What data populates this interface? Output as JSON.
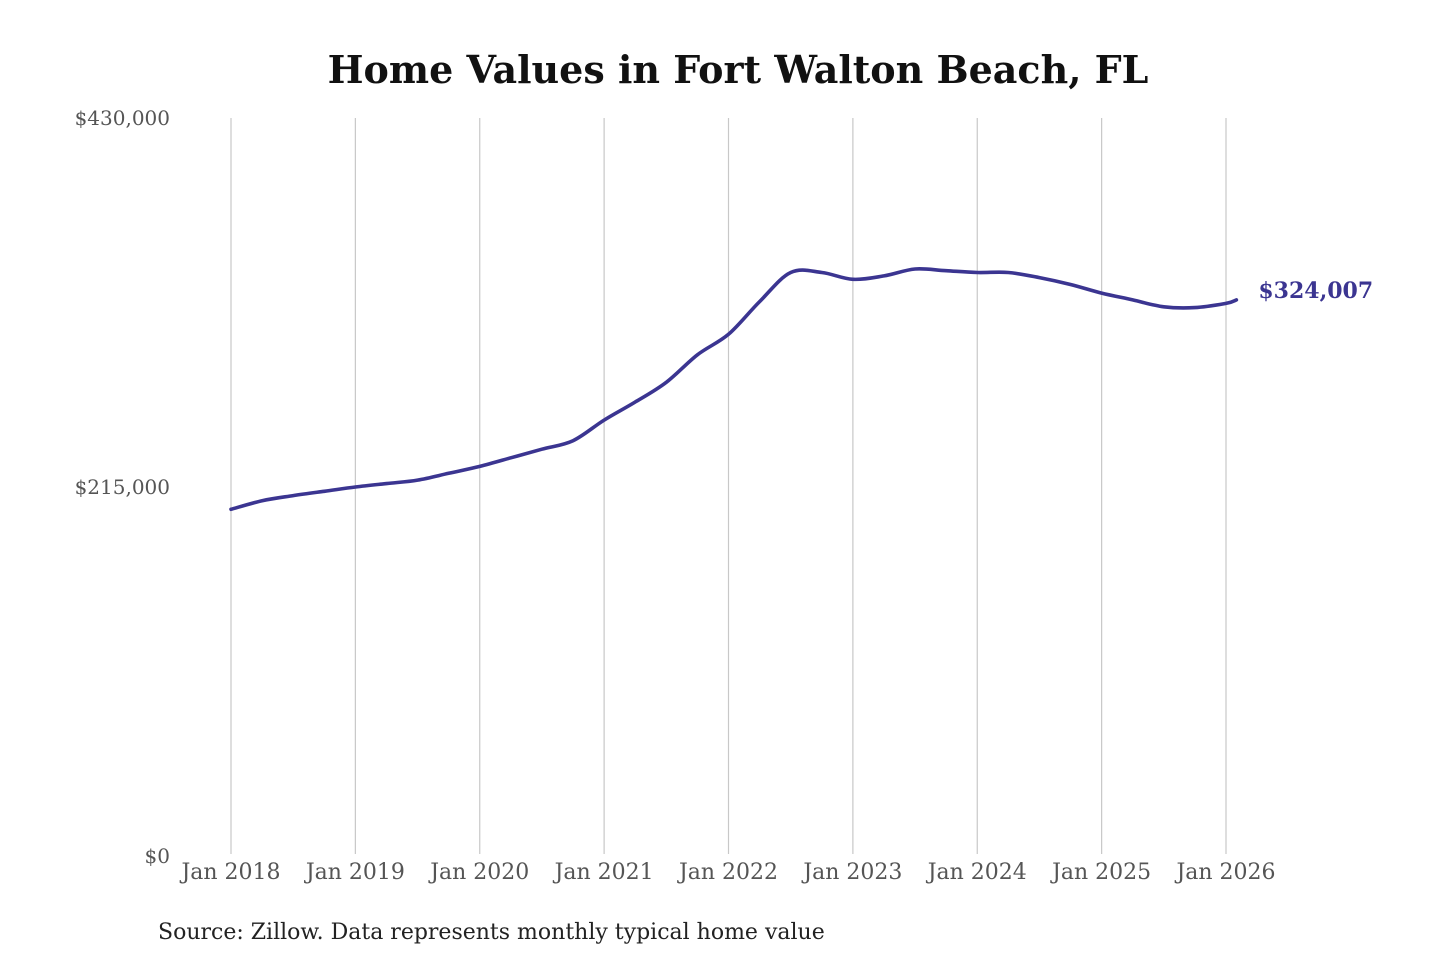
{
  "chart_data": {
    "type": "line",
    "title": "Home Values in Fort Walton Beach, FL",
    "source": "Source: Zillow. Data represents monthly typical home value",
    "y_ticks": [
      {
        "value": 0,
        "label": "$0"
      },
      {
        "value": 215000,
        "label": "$215,000"
      },
      {
        "value": 430000,
        "label": "$430,000"
      }
    ],
    "ylim": [
      0,
      430000
    ],
    "x_ticks": [
      "Jan 2018",
      "Jan 2019",
      "Jan 2020",
      "Jan 2021",
      "Jan 2022",
      "Jan 2023",
      "Jan 2024",
      "Jan 2025",
      "Jan 2026"
    ],
    "xlim": [
      "2018-01",
      "2026-01"
    ],
    "grid": "vertical",
    "line_color": "#3b3591",
    "series": [
      {
        "end_label": "$324,007",
        "points": [
          [
            "2018-01",
            202000
          ],
          [
            "2018-04",
            207000
          ],
          [
            "2018-07",
            210000
          ],
          [
            "2018-10",
            212500
          ],
          [
            "2019-01",
            215000
          ],
          [
            "2019-04",
            217000
          ],
          [
            "2019-07",
            219000
          ],
          [
            "2019-10",
            223000
          ],
          [
            "2020-01",
            227000
          ],
          [
            "2020-04",
            232000
          ],
          [
            "2020-07",
            237000
          ],
          [
            "2020-10",
            242000
          ],
          [
            "2021-01",
            254000
          ],
          [
            "2021-04",
            264500
          ],
          [
            "2021-07",
            276000
          ],
          [
            "2021-10",
            292000
          ],
          [
            "2022-01",
            304000
          ],
          [
            "2022-04",
            323000
          ],
          [
            "2022-07",
            340000
          ],
          [
            "2022-10",
            340000
          ],
          [
            "2023-01",
            336000
          ],
          [
            "2023-04",
            338000
          ],
          [
            "2023-07",
            342000
          ],
          [
            "2023-10",
            341000
          ],
          [
            "2024-01",
            340000
          ],
          [
            "2024-04",
            340000
          ],
          [
            "2024-07",
            337000
          ],
          [
            "2024-10",
            333000
          ],
          [
            "2025-01",
            328000
          ],
          [
            "2025-04",
            324000
          ],
          [
            "2025-07",
            320000
          ],
          [
            "2025-10",
            319500
          ],
          [
            "2026-01",
            322000
          ],
          [
            "2026-02",
            324007
          ]
        ]
      }
    ]
  }
}
